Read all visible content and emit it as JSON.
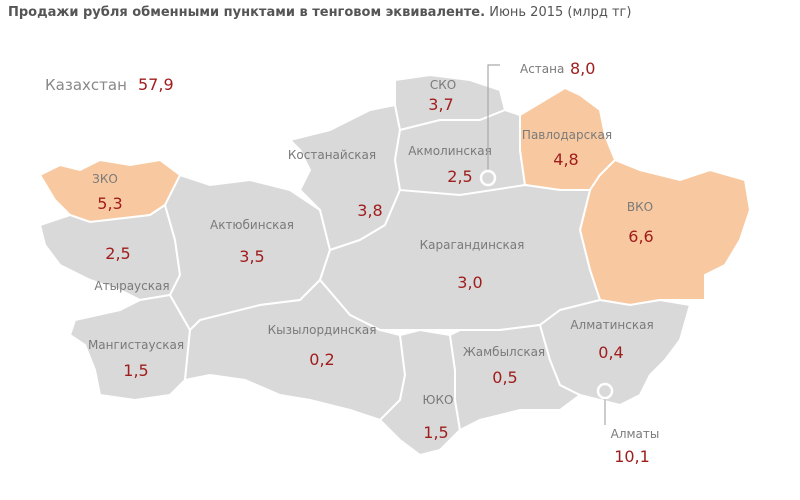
{
  "header": {
    "title": "Продажи рубля обменными пунктами в тенговом эквиваленте.",
    "subtitle": "Июнь 2015 (млрд тг)"
  },
  "total": {
    "label": "Казахстан",
    "value": "57,9"
  },
  "regions": [
    {
      "name": "ЗКО",
      "value": "5,3"
    },
    {
      "name": "Атырауская",
      "value": "2,5"
    },
    {
      "name": "Мангистауская",
      "value": "1,5"
    },
    {
      "name": "Актюбинская",
      "value": "3,5"
    },
    {
      "name": "Костанайская",
      "value": "3,8"
    },
    {
      "name": "СКО",
      "value": "3,7"
    },
    {
      "name": "Акмолинская",
      "value": "2,5"
    },
    {
      "name": "Павлодарская",
      "value": "4,8"
    },
    {
      "name": "ВКО",
      "value": "6,6"
    },
    {
      "name": "Карагандинская",
      "value": "3,0"
    },
    {
      "name": "Кызылординская",
      "value": "0,2"
    },
    {
      "name": "ЮКО",
      "value": "1,5"
    },
    {
      "name": "Жамбылская",
      "value": "0,5"
    },
    {
      "name": "Алматинская",
      "value": "0,4"
    }
  ],
  "cities": [
    {
      "name": "Астана",
      "value": "8,0"
    },
    {
      "name": "Алматы",
      "value": "10,1"
    }
  ]
}
